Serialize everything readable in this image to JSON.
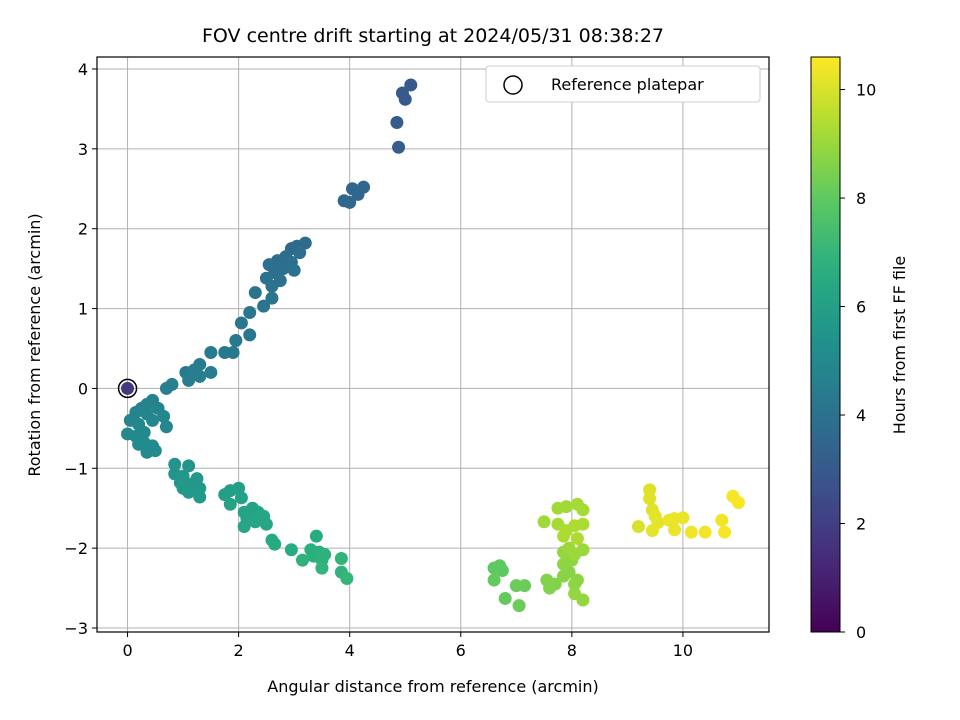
{
  "chart_data": {
    "type": "scatter",
    "title": "FOV centre drift starting at 2024/05/31 08:38:27",
    "xlabel": "Angular distance from reference (arcmin)",
    "ylabel": "Rotation from reference (arcmin)",
    "xlim": [
      -0.55,
      11.55
    ],
    "ylim": [
      -3.05,
      4.15
    ],
    "xticks": [
      0,
      2,
      4,
      6,
      8,
      10
    ],
    "yticks": [
      -3,
      -2,
      -1,
      0,
      1,
      2,
      3,
      4
    ],
    "grid": true,
    "legend": {
      "label": "Reference platepar",
      "placement": "top-right"
    },
    "reference_point": {
      "x": 0,
      "y": 0
    },
    "colorbar": {
      "label": "Hours from first FF file",
      "colormap": "viridis",
      "range": [
        0,
        10.6
      ],
      "ticks": [
        0,
        2,
        4,
        6,
        8,
        10
      ]
    },
    "series": [
      {
        "points": [
          {
            "x": 0,
            "y": 0,
            "c": 1.8
          },
          {
            "x": 5.1,
            "y": 3.8,
            "c": 3.0
          },
          {
            "x": 4.95,
            "y": 3.7,
            "c": 3.0
          },
          {
            "x": 5.0,
            "y": 3.62,
            "c": 3.0
          },
          {
            "x": 4.85,
            "y": 3.33,
            "c": 3.1
          },
          {
            "x": 4.88,
            "y": 3.02,
            "c": 3.2
          },
          {
            "x": 4.25,
            "y": 2.52,
            "c": 3.5
          },
          {
            "x": 4.05,
            "y": 2.5,
            "c": 3.5
          },
          {
            "x": 4.15,
            "y": 2.43,
            "c": 3.5
          },
          {
            "x": 3.9,
            "y": 2.35,
            "c": 3.6
          },
          {
            "x": 4.0,
            "y": 2.33,
            "c": 3.6
          },
          {
            "x": 3.2,
            "y": 1.82,
            "c": 3.7
          },
          {
            "x": 3.05,
            "y": 1.78,
            "c": 3.7
          },
          {
            "x": 2.95,
            "y": 1.75,
            "c": 3.7
          },
          {
            "x": 3.1,
            "y": 1.7,
            "c": 3.8
          },
          {
            "x": 2.85,
            "y": 1.65,
            "c": 3.8
          },
          {
            "x": 2.7,
            "y": 1.6,
            "c": 3.8
          },
          {
            "x": 2.55,
            "y": 1.55,
            "c": 3.9
          },
          {
            "x": 2.95,
            "y": 1.58,
            "c": 3.9
          },
          {
            "x": 2.8,
            "y": 1.5,
            "c": 3.9
          },
          {
            "x": 2.65,
            "y": 1.45,
            "c": 3.9
          },
          {
            "x": 3.0,
            "y": 1.48,
            "c": 4.0
          },
          {
            "x": 2.5,
            "y": 1.38,
            "c": 4.0
          },
          {
            "x": 2.75,
            "y": 1.35,
            "c": 4.0
          },
          {
            "x": 2.6,
            "y": 1.28,
            "c": 4.0
          },
          {
            "x": 2.3,
            "y": 1.2,
            "c": 4.1
          },
          {
            "x": 2.6,
            "y": 1.13,
            "c": 4.1
          },
          {
            "x": 2.45,
            "y": 1.03,
            "c": 4.1
          },
          {
            "x": 2.2,
            "y": 0.95,
            "c": 4.2
          },
          {
            "x": 2.05,
            "y": 0.82,
            "c": 4.2
          },
          {
            "x": 2.2,
            "y": 0.67,
            "c": 4.2
          },
          {
            "x": 1.95,
            "y": 0.6,
            "c": 4.3
          },
          {
            "x": 1.75,
            "y": 0.45,
            "c": 4.3
          },
          {
            "x": 1.9,
            "y": 0.45,
            "c": 4.3
          },
          {
            "x": 1.5,
            "y": 0.45,
            "c": 4.4
          },
          {
            "x": 1.3,
            "y": 0.3,
            "c": 4.4
          },
          {
            "x": 1.05,
            "y": 0.2,
            "c": 4.4
          },
          {
            "x": 1.2,
            "y": 0.23,
            "c": 4.5
          },
          {
            "x": 1.5,
            "y": 0.2,
            "c": 4.5
          },
          {
            "x": 1.3,
            "y": 0.15,
            "c": 4.5
          },
          {
            "x": 1.1,
            "y": 0.1,
            "c": 4.5
          },
          {
            "x": 0.8,
            "y": 0.05,
            "c": 4.6
          },
          {
            "x": 0.7,
            "y": 0.0,
            "c": 4.6
          },
          {
            "x": 0.45,
            "y": -0.15,
            "c": 4.7
          },
          {
            "x": 0.35,
            "y": -0.2,
            "c": 4.7
          },
          {
            "x": 0.25,
            "y": -0.25,
            "c": 4.7
          },
          {
            "x": 0.55,
            "y": -0.25,
            "c": 4.8
          },
          {
            "x": 0.15,
            "y": -0.3,
            "c": 4.8
          },
          {
            "x": 0.35,
            "y": -0.32,
            "c": 4.8
          },
          {
            "x": 0.05,
            "y": -0.4,
            "c": 4.8
          },
          {
            "x": 0.2,
            "y": -0.45,
            "c": 4.9
          },
          {
            "x": 0.45,
            "y": -0.4,
            "c": 4.9
          },
          {
            "x": 0.65,
            "y": -0.35,
            "c": 4.9
          },
          {
            "x": 0.7,
            "y": -0.48,
            "c": 4.9
          },
          {
            "x": 0.3,
            "y": -0.55,
            "c": 5.0
          },
          {
            "x": 0.15,
            "y": -0.6,
            "c": 5.0
          },
          {
            "x": 0.0,
            "y": -0.57,
            "c": 5.0
          },
          {
            "x": 0.3,
            "y": -0.68,
            "c": 5.0
          },
          {
            "x": 0.45,
            "y": -0.72,
            "c": 5.1
          },
          {
            "x": 0.2,
            "y": -0.7,
            "c": 5.1
          },
          {
            "x": 0.35,
            "y": -0.8,
            "c": 5.1
          },
          {
            "x": 0.5,
            "y": -0.78,
            "c": 5.1
          },
          {
            "x": 0.85,
            "y": -0.95,
            "c": 5.5
          },
          {
            "x": 1.1,
            "y": -0.97,
            "c": 5.5
          },
          {
            "x": 0.85,
            "y": -1.07,
            "c": 5.5
          },
          {
            "x": 1.0,
            "y": -1.1,
            "c": 5.6
          },
          {
            "x": 1.25,
            "y": -1.13,
            "c": 5.6
          },
          {
            "x": 0.95,
            "y": -1.18,
            "c": 5.6
          },
          {
            "x": 1.15,
            "y": -1.2,
            "c": 5.6
          },
          {
            "x": 1.0,
            "y": -1.25,
            "c": 5.7
          },
          {
            "x": 1.3,
            "y": -1.25,
            "c": 5.7
          },
          {
            "x": 1.1,
            "y": -1.3,
            "c": 5.7
          },
          {
            "x": 1.3,
            "y": -1.36,
            "c": 5.7
          },
          {
            "x": 2.0,
            "y": -1.25,
            "c": 6.0
          },
          {
            "x": 1.85,
            "y": -1.28,
            "c": 6.0
          },
          {
            "x": 1.75,
            "y": -1.33,
            "c": 6.0
          },
          {
            "x": 2.05,
            "y": -1.37,
            "c": 6.1
          },
          {
            "x": 1.85,
            "y": -1.45,
            "c": 6.1
          },
          {
            "x": 2.25,
            "y": -1.5,
            "c": 6.1
          },
          {
            "x": 2.1,
            "y": -1.55,
            "c": 6.2
          },
          {
            "x": 2.35,
            "y": -1.55,
            "c": 6.2
          },
          {
            "x": 2.15,
            "y": -1.63,
            "c": 6.2
          },
          {
            "x": 2.45,
            "y": -1.6,
            "c": 6.3
          },
          {
            "x": 2.3,
            "y": -1.67,
            "c": 6.3
          },
          {
            "x": 2.1,
            "y": -1.73,
            "c": 6.3
          },
          {
            "x": 2.5,
            "y": -1.7,
            "c": 6.3
          },
          {
            "x": 2.6,
            "y": -1.9,
            "c": 6.5
          },
          {
            "x": 2.65,
            "y": -1.95,
            "c": 6.5
          },
          {
            "x": 2.95,
            "y": -2.02,
            "c": 6.6
          },
          {
            "x": 3.4,
            "y": -1.85,
            "c": 6.6
          },
          {
            "x": 3.3,
            "y": -2.02,
            "c": 6.7
          },
          {
            "x": 3.45,
            "y": -2.05,
            "c": 6.7
          },
          {
            "x": 3.35,
            "y": -2.1,
            "c": 6.7
          },
          {
            "x": 3.55,
            "y": -2.08,
            "c": 6.8
          },
          {
            "x": 3.15,
            "y": -2.15,
            "c": 6.8
          },
          {
            "x": 3.5,
            "y": -2.15,
            "c": 6.8
          },
          {
            "x": 3.85,
            "y": -2.13,
            "c": 6.9
          },
          {
            "x": 3.5,
            "y": -2.25,
            "c": 6.9
          },
          {
            "x": 3.85,
            "y": -2.3,
            "c": 6.9
          },
          {
            "x": 3.95,
            "y": -2.38,
            "c": 7.0
          },
          {
            "x": 6.6,
            "y": -2.25,
            "c": 8.0
          },
          {
            "x": 6.7,
            "y": -2.22,
            "c": 8.0
          },
          {
            "x": 6.75,
            "y": -2.28,
            "c": 8.0
          },
          {
            "x": 6.6,
            "y": -2.4,
            "c": 8.1
          },
          {
            "x": 6.8,
            "y": -2.63,
            "c": 8.1
          },
          {
            "x": 7.0,
            "y": -2.47,
            "c": 8.2
          },
          {
            "x": 7.15,
            "y": -2.47,
            "c": 8.2
          },
          {
            "x": 7.05,
            "y": -2.72,
            "c": 8.2
          },
          {
            "x": 7.55,
            "y": -2.4,
            "c": 8.6
          },
          {
            "x": 7.6,
            "y": -2.5,
            "c": 8.6
          },
          {
            "x": 7.7,
            "y": -2.45,
            "c": 8.6
          },
          {
            "x": 7.85,
            "y": -2.35,
            "c": 8.7
          },
          {
            "x": 7.95,
            "y": -2.3,
            "c": 8.7
          },
          {
            "x": 8.05,
            "y": -2.45,
            "c": 8.7
          },
          {
            "x": 7.85,
            "y": -2.2,
            "c": 8.8
          },
          {
            "x": 8.0,
            "y": -2.15,
            "c": 8.8
          },
          {
            "x": 8.1,
            "y": -2.4,
            "c": 8.8
          },
          {
            "x": 8.05,
            "y": -2.57,
            "c": 8.9
          },
          {
            "x": 8.2,
            "y": -2.65,
            "c": 8.9
          },
          {
            "x": 7.85,
            "y": -2.05,
            "c": 8.9
          },
          {
            "x": 7.95,
            "y": -2.0,
            "c": 9.0
          },
          {
            "x": 8.05,
            "y": -2.08,
            "c": 9.0
          },
          {
            "x": 8.2,
            "y": -2.02,
            "c": 9.0
          },
          {
            "x": 7.5,
            "y": -1.67,
            "c": 9.1
          },
          {
            "x": 7.75,
            "y": -1.5,
            "c": 9.1
          },
          {
            "x": 7.9,
            "y": -1.48,
            "c": 9.1
          },
          {
            "x": 8.1,
            "y": -1.45,
            "c": 9.2
          },
          {
            "x": 8.2,
            "y": -1.52,
            "c": 9.2
          },
          {
            "x": 7.75,
            "y": -1.7,
            "c": 9.2
          },
          {
            "x": 7.9,
            "y": -1.78,
            "c": 9.3
          },
          {
            "x": 8.05,
            "y": -1.72,
            "c": 9.3
          },
          {
            "x": 8.2,
            "y": -1.7,
            "c": 9.3
          },
          {
            "x": 7.85,
            "y": -1.85,
            "c": 9.3
          },
          {
            "x": 8.1,
            "y": -1.88,
            "c": 9.3
          },
          {
            "x": 9.2,
            "y": -1.73,
            "c": 10.0
          },
          {
            "x": 9.4,
            "y": -1.27,
            "c": 10.1
          },
          {
            "x": 9.4,
            "y": -1.38,
            "c": 10.1
          },
          {
            "x": 9.45,
            "y": -1.52,
            "c": 10.1
          },
          {
            "x": 9.5,
            "y": -1.6,
            "c": 10.2
          },
          {
            "x": 9.55,
            "y": -1.68,
            "c": 10.2
          },
          {
            "x": 9.45,
            "y": -1.78,
            "c": 10.2
          },
          {
            "x": 9.75,
            "y": -1.65,
            "c": 10.3
          },
          {
            "x": 9.85,
            "y": -1.63,
            "c": 10.3
          },
          {
            "x": 10.0,
            "y": -1.62,
            "c": 10.3
          },
          {
            "x": 9.85,
            "y": -1.77,
            "c": 10.3
          },
          {
            "x": 10.15,
            "y": -1.8,
            "c": 10.4
          },
          {
            "x": 10.4,
            "y": -1.8,
            "c": 10.4
          },
          {
            "x": 10.7,
            "y": -1.65,
            "c": 10.4
          },
          {
            "x": 10.75,
            "y": -1.8,
            "c": 10.5
          },
          {
            "x": 10.9,
            "y": -1.35,
            "c": 10.5
          },
          {
            "x": 11.0,
            "y": -1.43,
            "c": 10.5
          }
        ]
      }
    ]
  }
}
